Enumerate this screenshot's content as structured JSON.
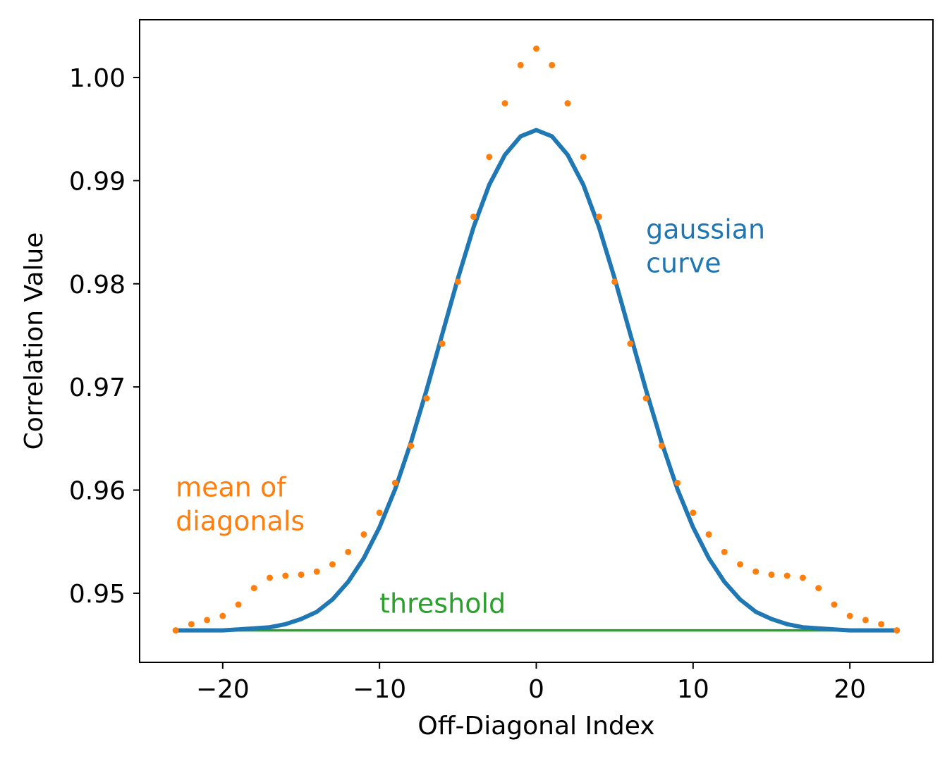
{
  "chart_data": {
    "type": "line",
    "title": "",
    "xlabel": "Off-Diagonal Index",
    "ylabel": "Correlation Value",
    "xlim": [
      -25.3,
      25.3
    ],
    "ylim": [
      0.9433,
      1.0056
    ],
    "xticks": [
      -20,
      -10,
      0,
      10,
      20
    ],
    "xtick_labels": [
      "−20",
      "−10",
      "0",
      "10",
      "20"
    ],
    "yticks": [
      0.95,
      0.96,
      0.97,
      0.98,
      0.99,
      1.0
    ],
    "ytick_labels": [
      "0.95",
      "0.96",
      "0.97",
      "0.98",
      "0.99",
      "1.00"
    ],
    "grid": false,
    "legend": "none",
    "x": [
      -23,
      -22,
      -21,
      -20,
      -19,
      -18,
      -17,
      -16,
      -15,
      -14,
      -13,
      -12,
      -11,
      -10,
      -9,
      -8,
      -7,
      -6,
      -5,
      -4,
      -3,
      -2,
      -1,
      0,
      1,
      2,
      3,
      4,
      5,
      6,
      7,
      8,
      9,
      10,
      11,
      12,
      13,
      14,
      15,
      16,
      17,
      18,
      19,
      20,
      21,
      22,
      23
    ],
    "series": [
      {
        "name": "gaussian curve",
        "style": "line",
        "color": "#1f77b4",
        "values": [
          0.9464,
          0.9464,
          0.9464,
          0.9464,
          0.9465,
          0.9466,
          0.9467,
          0.947,
          0.9475,
          0.9482,
          0.9494,
          0.9511,
          0.9534,
          0.9564,
          0.9601,
          0.9646,
          0.9697,
          0.9751,
          0.9805,
          0.9855,
          0.9896,
          0.9925,
          0.9943,
          0.9949,
          0.9943,
          0.9925,
          0.9896,
          0.9855,
          0.9805,
          0.9751,
          0.9697,
          0.9646,
          0.9601,
          0.9564,
          0.9534,
          0.9511,
          0.9494,
          0.9482,
          0.9475,
          0.947,
          0.9467,
          0.9466,
          0.9465,
          0.9464,
          0.9464,
          0.9464,
          0.9464
        ]
      },
      {
        "name": "mean of diagonals",
        "style": "points",
        "color": "#ff7f0e",
        "values": [
          0.9464,
          0.947,
          0.9474,
          0.9478,
          0.9489,
          0.9505,
          0.9515,
          0.9517,
          0.9518,
          0.9521,
          0.9528,
          0.954,
          0.9557,
          0.9578,
          0.9607,
          0.9643,
          0.9689,
          0.9742,
          0.9802,
          0.9865,
          0.9923,
          0.9975,
          1.0012,
          1.0028,
          1.0012,
          0.9975,
          0.9923,
          0.9865,
          0.9802,
          0.9742,
          0.9689,
          0.9643,
          0.9607,
          0.9578,
          0.9557,
          0.954,
          0.9528,
          0.9521,
          0.9518,
          0.9517,
          0.9515,
          0.9505,
          0.9489,
          0.9478,
          0.9474,
          0.947,
          0.9464
        ]
      },
      {
        "name": "threshold",
        "style": "line",
        "color": "#2ca02c",
        "values": [
          0.9464,
          0.9464,
          0.9464,
          0.9464,
          0.9464,
          0.9464,
          0.9464,
          0.9464,
          0.9464,
          0.9464,
          0.9464,
          0.9464,
          0.9464,
          0.9464,
          0.9464,
          0.9464,
          0.9464,
          0.9464,
          0.9464,
          0.9464,
          0.9464,
          0.9464,
          0.9464,
          0.9464,
          0.9464,
          0.9464,
          0.9464,
          0.9464,
          0.9464,
          0.9464,
          0.9464,
          0.9464,
          0.9464,
          0.9464,
          0.9464,
          0.9464,
          0.9464,
          0.9464,
          0.9464,
          0.9464,
          0.9464,
          0.9464,
          0.9464,
          0.9464,
          0.9464,
          0.9464,
          0.9464
        ]
      }
    ],
    "annotations": [
      {
        "lines": [
          "gaussian",
          "curve"
        ],
        "color": "#1f77b4",
        "x": 7,
        "y": 0.9844
      },
      {
        "lines": [
          "mean of",
          "diagonals"
        ],
        "color": "#ff7f0e",
        "x": -23,
        "y": 0.9594
      },
      {
        "lines": [
          "threshold"
        ],
        "color": "#2ca02c",
        "x": -10,
        "y": 0.9481
      }
    ]
  }
}
